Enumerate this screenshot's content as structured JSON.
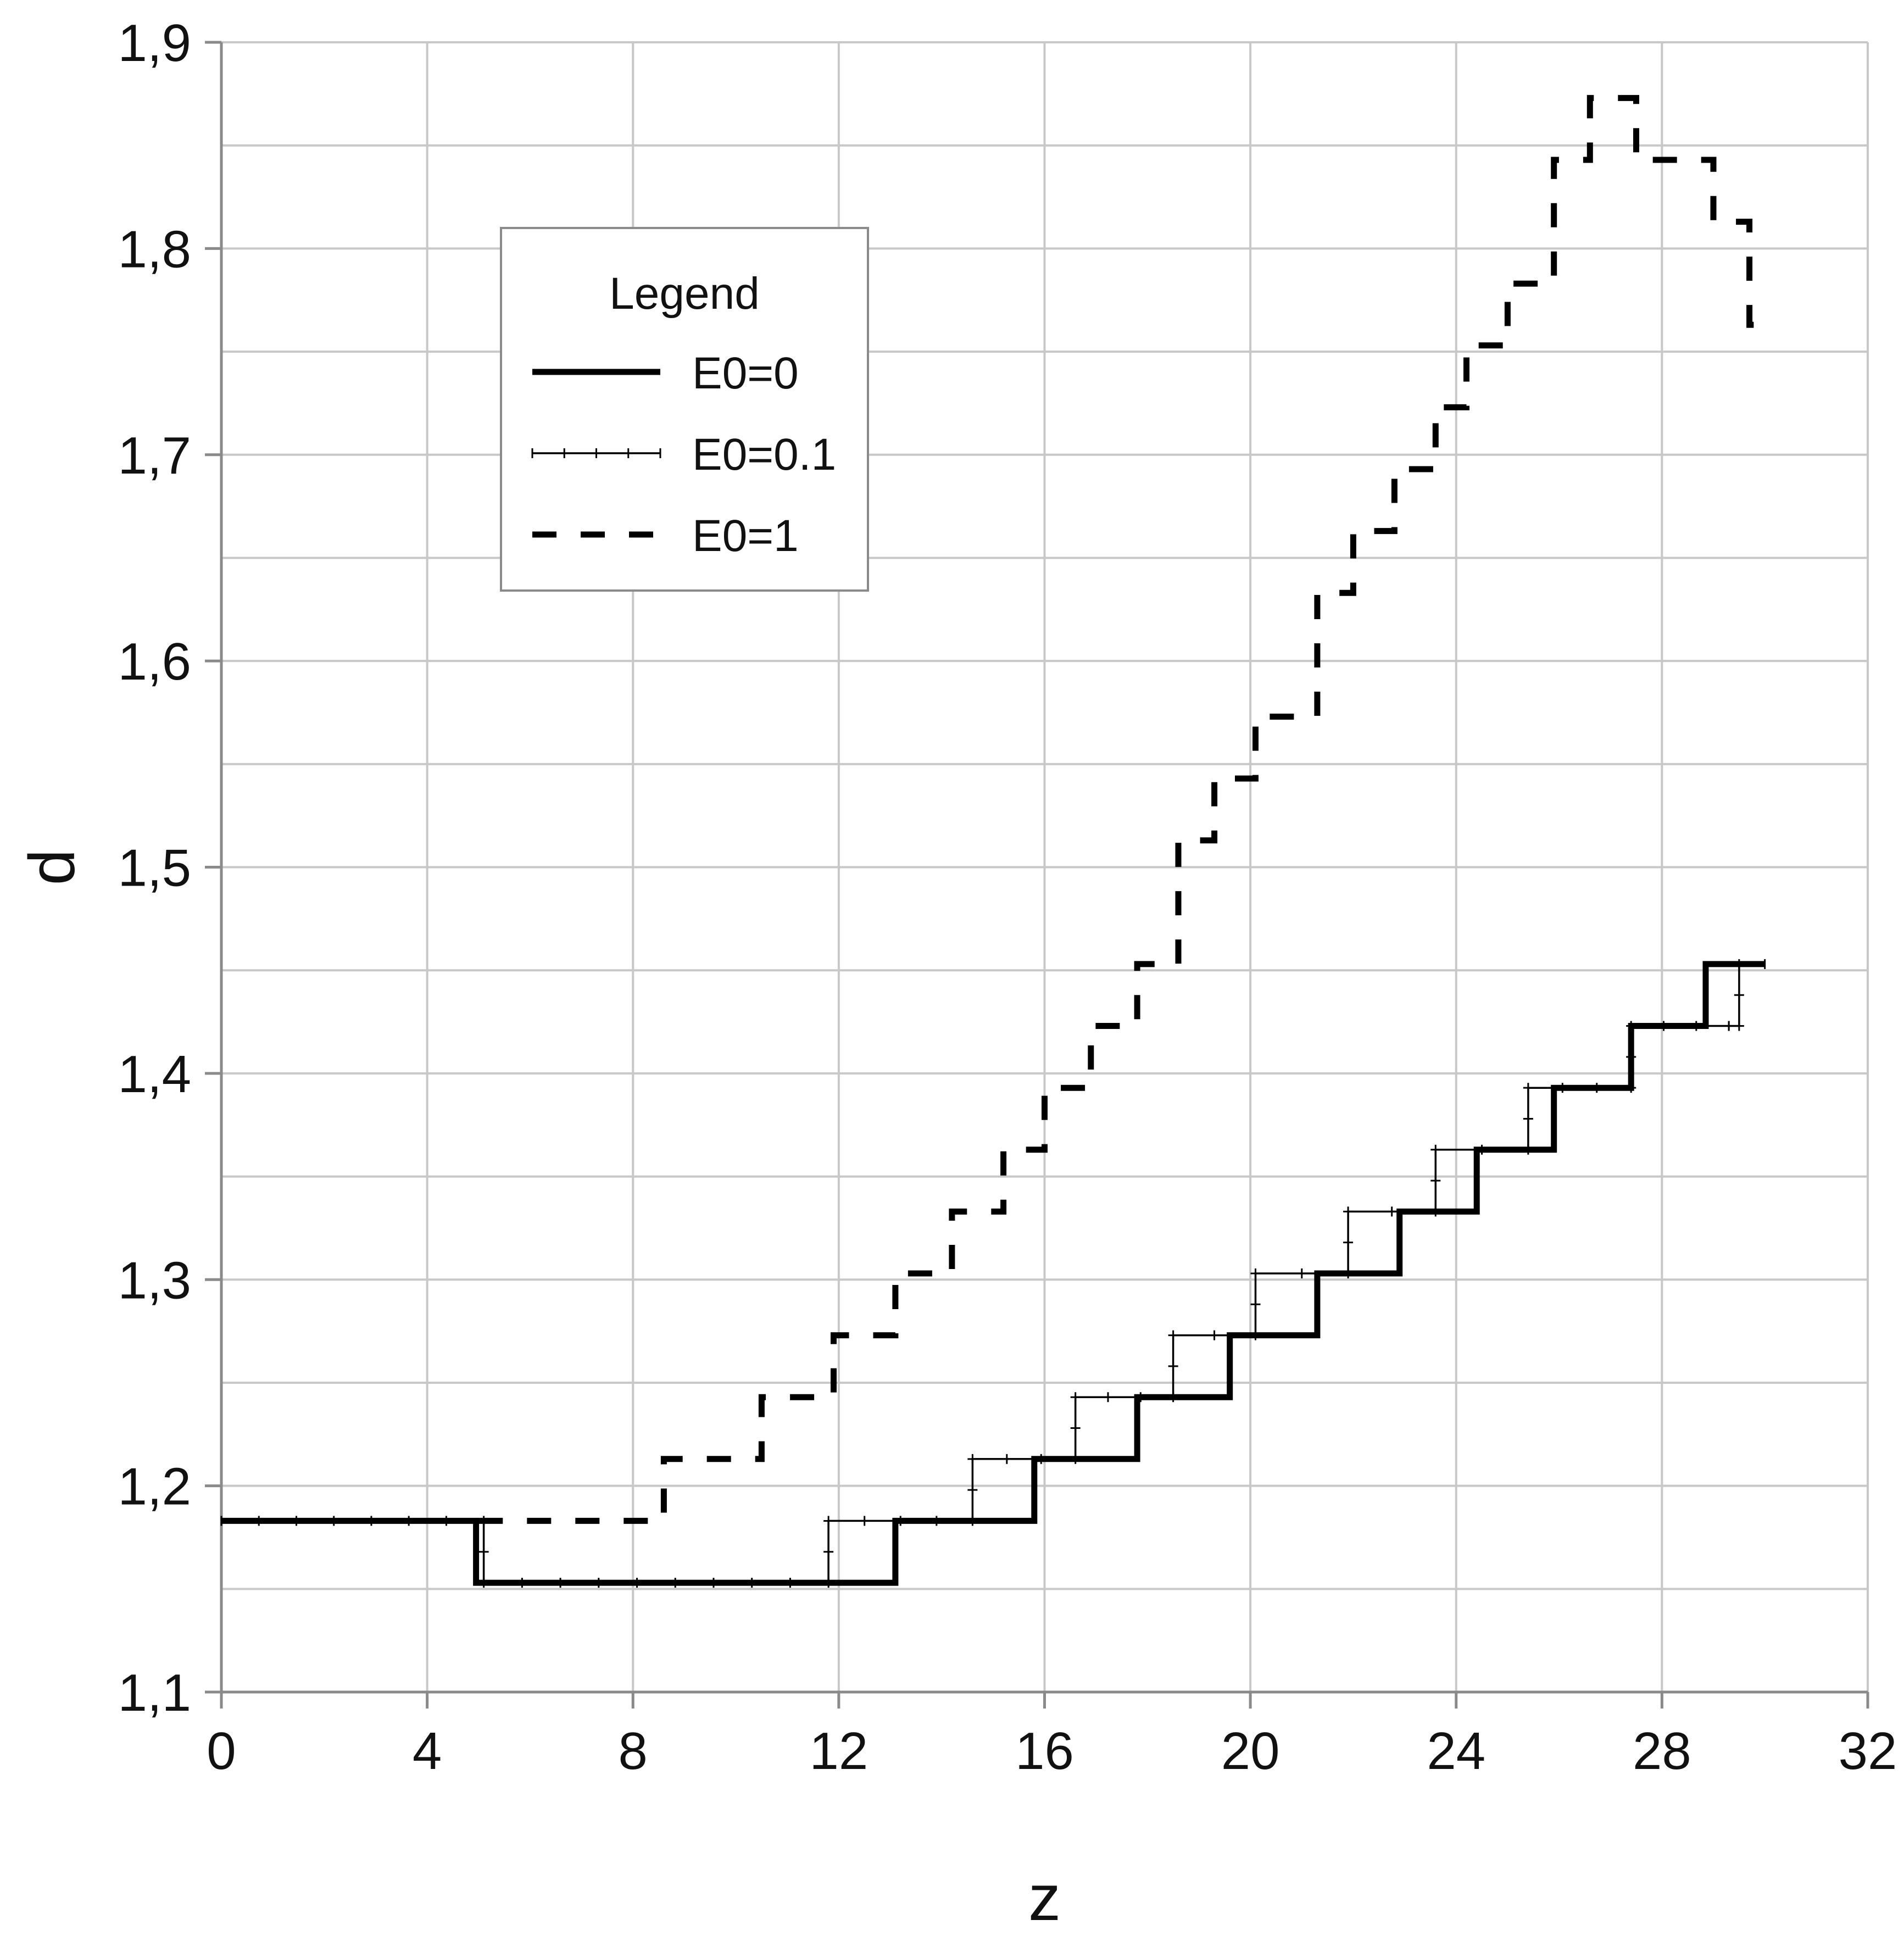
{
  "chart_data": {
    "type": "line",
    "xlabel": "z",
    "ylabel": "d",
    "xlim": [
      0,
      32
    ],
    "ylim": [
      1.1,
      1.9
    ],
    "x_ticks": [
      "0",
      "4",
      "8",
      "12",
      "16",
      "20",
      "24",
      "28",
      "32"
    ],
    "y_ticks": [
      "1,1",
      "1,2",
      "1,3",
      "1,4",
      "1,5",
      "1,6",
      "1,7",
      "1,8",
      "1,9"
    ],
    "grid": true,
    "legend": {
      "title": "Legend",
      "position": "upper-left"
    },
    "series": [
      {
        "name": "E0=0",
        "style": "solid-thick",
        "color": "#000000",
        "x": [
          0,
          4.95,
          4.95,
          13.1,
          13.1,
          15.8,
          15.8,
          17.8,
          17.8,
          19.6,
          19.6,
          21.3,
          21.3,
          22.9,
          22.9,
          24.4,
          24.4,
          25.9,
          25.9,
          27.4,
          27.4,
          28.85,
          28.85,
          30.0
        ],
        "y": [
          1.183,
          1.183,
          1.153,
          1.153,
          1.183,
          1.183,
          1.213,
          1.213,
          1.243,
          1.243,
          1.273,
          1.273,
          1.303,
          1.303,
          1.333,
          1.333,
          1.363,
          1.363,
          1.393,
          1.393,
          1.423,
          1.423,
          1.453,
          1.453
        ]
      },
      {
        "name": "E0=0.1",
        "style": "thin-marked",
        "color": "#000000",
        "x": [
          0,
          5.1,
          5.1,
          11.8,
          11.8,
          14.6,
          14.6,
          16.6,
          16.6,
          18.5,
          18.5,
          20.1,
          20.1,
          21.9,
          21.9,
          23.6,
          23.6,
          25.4,
          25.4,
          27.4,
          27.4,
          29.3,
          29.3,
          29.5,
          29.5,
          30.0
        ],
        "y": [
          1.183,
          1.183,
          1.153,
          1.153,
          1.183,
          1.183,
          1.213,
          1.213,
          1.243,
          1.243,
          1.273,
          1.273,
          1.303,
          1.303,
          1.333,
          1.333,
          1.363,
          1.363,
          1.393,
          1.393,
          1.423,
          1.423,
          1.423,
          1.423,
          1.453,
          1.453
        ]
      },
      {
        "name": "E0=1",
        "style": "dashed-thick",
        "color": "#000000",
        "x": [
          5.0,
          8.6,
          8.6,
          10.5,
          10.5,
          11.9,
          11.9,
          13.1,
          13.1,
          14.2,
          14.2,
          15.2,
          15.2,
          16.0,
          16.0,
          16.9,
          16.9,
          17.8,
          17.8,
          18.6,
          18.6,
          19.3,
          19.3,
          20.1,
          20.1,
          21.3,
          21.3,
          22.0,
          22.0,
          22.8,
          22.8,
          23.6,
          23.6,
          24.2,
          24.2,
          25.0,
          25.0,
          25.9,
          25.9,
          26.6,
          26.6,
          27.5,
          27.5,
          29.0,
          29.0,
          29.7,
          29.7,
          30.0
        ],
        "y": [
          1.183,
          1.183,
          1.213,
          1.213,
          1.243,
          1.243,
          1.273,
          1.273,
          1.303,
          1.303,
          1.333,
          1.333,
          1.363,
          1.363,
          1.393,
          1.393,
          1.423,
          1.423,
          1.453,
          1.453,
          1.513,
          1.513,
          1.543,
          1.543,
          1.573,
          1.573,
          1.633,
          1.633,
          1.663,
          1.663,
          1.693,
          1.693,
          1.723,
          1.723,
          1.753,
          1.753,
          1.783,
          1.783,
          1.843,
          1.843,
          1.873,
          1.873,
          1.843,
          1.843,
          1.813,
          1.813,
          1.763,
          1.763
        ]
      }
    ]
  }
}
